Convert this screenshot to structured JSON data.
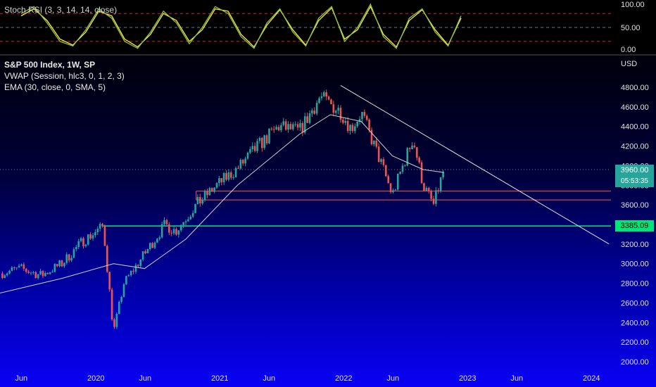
{
  "indicator_pane": {
    "title": "Stoch RSI (3, 3, 14, 14, close)",
    "levels": [
      "100.00",
      "50.00",
      "0.00"
    ]
  },
  "legend": {
    "symbol": "S&P 500 Index, 1W, SP",
    "vwap": "VWAP (Session, hlc3, 0, 1, 2, 3)",
    "ema": "EMA (30, close, 0, SMA, 5)"
  },
  "price_axis": {
    "currency": "USD",
    "ticks": [
      "4800.00",
      "4600.00",
      "4400.00",
      "4200.00",
      "4000.00",
      "3800.00",
      "3600.00",
      "3400.00",
      "3200.00",
      "3000.00",
      "2800.00",
      "2600.00",
      "2400.00",
      "2200.00",
      "2000.00"
    ]
  },
  "time_axis": {
    "labels": [
      "Jun",
      "2020",
      "Jun",
      "2021",
      "Jun",
      "2022",
      "Jun",
      "2023",
      "Jun",
      "2024"
    ]
  },
  "tags": {
    "last_price": "3960.00",
    "countdown": "05:53:35",
    "support": "3385.09"
  },
  "colors": {
    "up_candle": "#26a69a",
    "down_candle": "#ef5350",
    "ema_line": "#d0d0d0",
    "stoch_k": "#8bc34a",
    "stoch_d": "#ffeb3b",
    "support_line": "#00e676",
    "zone_lines": "#ff5252",
    "trend_line": "#e0e0e0"
  },
  "chart_data": [
    {
      "type": "candlestick",
      "title": "S&P 500 Index, 1W, SP",
      "ylabel": "USD",
      "ylim": [
        1950,
        4900
      ],
      "x_range": [
        "2019-04",
        "2024-03"
      ],
      "series": [
        {
          "name": "S&P 500 Index",
          "x": [
            "2019-04",
            "2019-06",
            "2019-08",
            "2019-10",
            "2019-12",
            "2020-02",
            "2020-03",
            "2020-04",
            "2020-06",
            "2020-08",
            "2020-09",
            "2020-11",
            "2021-01",
            "2021-03",
            "2021-05",
            "2021-07",
            "2021-09",
            "2021-11",
            "2022-01",
            "2022-02",
            "2022-03",
            "2022-05",
            "2022-06",
            "2022-08",
            "2022-09",
            "2022-10",
            "2022-11"
          ],
          "close": [
            2900,
            2950,
            2880,
            3000,
            3230,
            3380,
            2300,
            2800,
            3100,
            3400,
            3330,
            3600,
            3800,
            3970,
            4200,
            4400,
            4350,
            4700,
            4550,
            4380,
            4540,
            4000,
            3700,
            4280,
            3800,
            3600,
            3960
          ]
        }
      ],
      "annotations": [
        {
          "label": "EMA (30, close, 0, SMA, 5)",
          "x": [
            "2019-04",
            "2019-10",
            "2020-03",
            "2020-06",
            "2020-10",
            "2021-03",
            "2021-09",
            "2021-12",
            "2022-03",
            "2022-06",
            "2022-09",
            "2022-11"
          ],
          "y": [
            2700,
            2850,
            3000,
            2950,
            3250,
            3800,
            4320,
            4520,
            4450,
            4100,
            3960,
            3930
          ]
        },
        {
          "label": "3385.09",
          "kind": "horizontal",
          "y": 3385.09,
          "from": "2020-02"
        },
        {
          "label": "zone-top",
          "kind": "horizontal",
          "y": 3740,
          "from": "2020-11"
        },
        {
          "label": "zone-bottom",
          "kind": "horizontal",
          "y": 3650,
          "from": "2020-11"
        },
        {
          "label": "downtrend",
          "kind": "trendline",
          "points": [
            [
              "2022-01",
              4818
            ],
            [
              "2024-03",
              3200
            ]
          ]
        }
      ]
    },
    {
      "type": "line",
      "title": "Stoch RSI (3, 3, 14, 14, close)",
      "ylim": [
        0,
        100
      ],
      "levels": [
        80,
        50,
        20
      ],
      "series": [
        {
          "name": "K",
          "values": [
            80,
            95,
            60,
            20,
            10,
            45,
            90,
            70,
            20,
            5,
            40,
            85,
            60,
            15,
            50,
            95,
            80,
            30,
            5,
            60,
            90,
            40,
            10,
            70,
            95,
            20,
            50,
            100,
            30,
            5,
            70,
            90,
            40,
            10,
            75
          ]
        },
        {
          "name": "D",
          "values": [
            75,
            90,
            65,
            25,
            12,
            40,
            85,
            75,
            25,
            8,
            35,
            80,
            65,
            20,
            45,
            90,
            85,
            35,
            8,
            55,
            88,
            45,
            12,
            65,
            92,
            25,
            45,
            95,
            35,
            8,
            65,
            88,
            45,
            12,
            70
          ]
        }
      ]
    }
  ]
}
